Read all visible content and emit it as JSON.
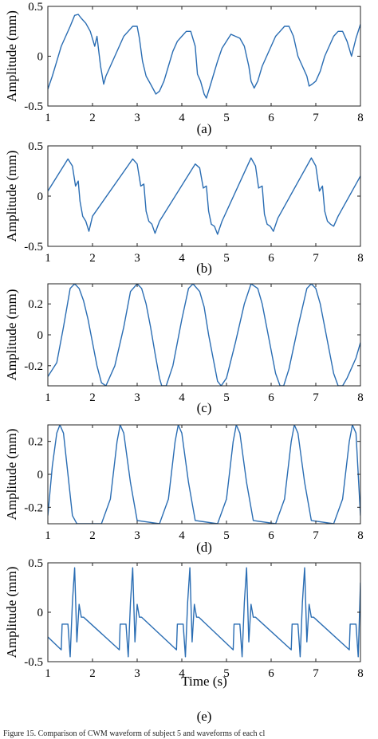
{
  "chart_data": [
    {
      "type": "line",
      "panel_label": "(a)",
      "ylabel": "Amplitude (mm)",
      "xlabel": "",
      "xlim": [
        1,
        8
      ],
      "ylim": [
        -0.5,
        0.5
      ],
      "xticks": [
        "1",
        "2",
        "3",
        "4",
        "5",
        "6",
        "7",
        "8"
      ],
      "yticks": [
        "0.5",
        "0",
        "-0.5"
      ],
      "ytick_values": [
        0.5,
        0,
        -0.5
      ],
      "grid": false,
      "series": [
        {
          "x": [
            1.0,
            1.1,
            1.2,
            1.3,
            1.4,
            1.5,
            1.6,
            1.68,
            1.75,
            1.85,
            1.95,
            2.05,
            2.1,
            2.18,
            2.25,
            2.3,
            2.4,
            2.5,
            2.6,
            2.7,
            2.8,
            2.9,
            3.0,
            3.05,
            3.12,
            3.2,
            3.3,
            3.42,
            3.5,
            3.6,
            3.7,
            3.8,
            3.9,
            4.0,
            4.1,
            4.2,
            4.3,
            4.35,
            4.42,
            4.5,
            4.55,
            4.62,
            4.7,
            4.8,
            4.9,
            5.0,
            5.1,
            5.2,
            5.3,
            5.4,
            5.5,
            5.55,
            5.62,
            5.7,
            5.8,
            5.9,
            6.0,
            6.1,
            6.2,
            6.3,
            6.4,
            6.5,
            6.6,
            6.7,
            6.8,
            6.85,
            6.92,
            7.0,
            7.1,
            7.2,
            7.3,
            7.4,
            7.5,
            7.6,
            7.7,
            7.8,
            7.9,
            8.0
          ],
          "y": [
            -0.33,
            -0.2,
            -0.05,
            0.1,
            0.2,
            0.3,
            0.41,
            0.42,
            0.38,
            0.33,
            0.25,
            0.1,
            0.2,
            -0.1,
            -0.28,
            -0.2,
            -0.1,
            0.0,
            0.1,
            0.2,
            0.25,
            0.3,
            0.3,
            0.18,
            -0.05,
            -0.2,
            -0.28,
            -0.38,
            -0.35,
            -0.25,
            -0.1,
            0.05,
            0.15,
            0.2,
            0.25,
            0.25,
            0.1,
            -0.18,
            -0.25,
            -0.38,
            -0.42,
            -0.32,
            -0.2,
            -0.05,
            0.08,
            0.15,
            0.22,
            0.2,
            0.18,
            0.1,
            -0.1,
            -0.25,
            -0.32,
            -0.25,
            -0.1,
            0.0,
            0.1,
            0.2,
            0.25,
            0.3,
            0.3,
            0.2,
            0.0,
            -0.1,
            -0.2,
            -0.3,
            -0.28,
            -0.25,
            -0.15,
            0.0,
            0.1,
            0.2,
            0.25,
            0.25,
            0.15,
            0.0,
            0.18,
            0.32
          ]
        }
      ]
    },
    {
      "type": "line",
      "panel_label": "(b)",
      "ylabel": "Amplitude (mm)",
      "xlabel": "",
      "xlim": [
        1,
        8
      ],
      "ylim": [
        -0.5,
        0.5
      ],
      "xticks": [
        "1",
        "2",
        "3",
        "4",
        "5",
        "6",
        "7",
        "8"
      ],
      "yticks": [
        "0.5",
        "0",
        "-0.5"
      ],
      "ytick_values": [
        0.5,
        0,
        -0.5
      ],
      "grid": false,
      "series": [
        {
          "x": [
            1.0,
            1.45,
            1.55,
            1.62,
            1.68,
            1.72,
            1.78,
            1.85,
            1.92,
            2.0,
            2.9,
            3.0,
            3.08,
            3.15,
            3.2,
            3.26,
            3.33,
            3.4,
            3.5,
            4.3,
            4.4,
            4.48,
            4.55,
            4.6,
            4.66,
            4.73,
            4.8,
            4.9,
            5.55,
            5.65,
            5.72,
            5.8,
            5.85,
            5.91,
            5.98,
            6.05,
            6.15,
            6.9,
            7.0,
            7.08,
            7.15,
            7.2,
            7.26,
            7.33,
            7.4,
            7.5,
            8.0
          ],
          "y": [
            0.05,
            0.37,
            0.3,
            0.1,
            0.15,
            -0.05,
            -0.2,
            -0.25,
            -0.35,
            -0.2,
            0.37,
            0.32,
            0.1,
            0.12,
            -0.15,
            -0.25,
            -0.28,
            -0.37,
            -0.25,
            0.32,
            0.28,
            0.08,
            0.1,
            -0.15,
            -0.28,
            -0.3,
            -0.38,
            -0.25,
            0.38,
            0.3,
            0.08,
            0.1,
            -0.18,
            -0.28,
            -0.3,
            -0.35,
            -0.22,
            0.38,
            0.3,
            0.05,
            0.1,
            -0.15,
            -0.25,
            -0.28,
            -0.3,
            -0.2,
            0.2
          ]
        }
      ]
    },
    {
      "type": "line",
      "panel_label": "(c)",
      "ylabel": "Amplitude (mm)",
      "xlabel": "",
      "xlim": [
        1,
        8
      ],
      "ylim": [
        -0.33,
        0.33
      ],
      "xticks": [
        "1",
        "2",
        "3",
        "4",
        "5",
        "6",
        "7",
        "8"
      ],
      "yticks": [
        "0.2",
        "0",
        "-0.2"
      ],
      "ytick_values": [
        0.2,
        0,
        -0.2
      ],
      "grid": false,
      "series": [
        {
          "x": [
            1.0,
            1.2,
            1.35,
            1.5,
            1.6,
            1.7,
            1.8,
            1.9,
            2.0,
            2.1,
            2.2,
            2.3,
            2.5,
            2.7,
            2.85,
            3.0,
            3.1,
            3.2,
            3.3,
            3.4,
            3.5,
            3.55,
            3.65,
            3.8,
            4.0,
            4.15,
            4.25,
            4.4,
            4.5,
            4.6,
            4.7,
            4.8,
            4.88,
            5.0,
            5.2,
            5.4,
            5.55,
            5.7,
            5.8,
            5.9,
            6.0,
            6.1,
            6.2,
            6.28,
            6.4,
            6.6,
            6.8,
            6.9,
            7.0,
            7.1,
            7.2,
            7.3,
            7.4,
            7.5,
            7.6,
            7.7,
            7.9,
            8.0
          ],
          "y": [
            -0.27,
            -0.18,
            0.05,
            0.3,
            0.33,
            0.3,
            0.22,
            0.1,
            -0.05,
            -0.2,
            -0.31,
            -0.33,
            -0.2,
            0.05,
            0.28,
            0.33,
            0.3,
            0.2,
            0.05,
            -0.12,
            -0.28,
            -0.33,
            -0.33,
            -0.2,
            0.1,
            0.3,
            0.33,
            0.28,
            0.18,
            0.0,
            -0.15,
            -0.3,
            -0.33,
            -0.28,
            -0.05,
            0.2,
            0.33,
            0.3,
            0.2,
            0.05,
            -0.1,
            -0.25,
            -0.33,
            -0.33,
            -0.22,
            0.05,
            0.3,
            0.33,
            0.3,
            0.2,
            0.05,
            -0.1,
            -0.25,
            -0.33,
            -0.33,
            -0.28,
            -0.15,
            -0.05
          ]
        }
      ]
    },
    {
      "type": "line",
      "panel_label": "(d)",
      "ylabel": "Amplitude (mm)",
      "xlabel": "",
      "xlim": [
        1,
        8
      ],
      "ylim": [
        -0.3,
        0.3
      ],
      "xticks": [
        "1",
        "2",
        "3",
        "4",
        "5",
        "6",
        "7",
        "8"
      ],
      "yticks": [
        "0.2",
        "0",
        "-0.2"
      ],
      "ytick_values": [
        0.2,
        0,
        -0.2
      ],
      "grid": false,
      "series": [
        {
          "x": [
            1.0,
            1.1,
            1.2,
            1.27,
            1.35,
            1.45,
            1.55,
            1.65,
            2.2,
            2.4,
            2.55,
            2.62,
            2.7,
            2.85,
            3.0,
            3.5,
            3.7,
            3.85,
            3.92,
            4.0,
            4.15,
            4.3,
            4.8,
            5.0,
            5.15,
            5.22,
            5.3,
            5.45,
            5.6,
            6.1,
            6.3,
            6.45,
            6.52,
            6.6,
            6.75,
            6.9,
            7.4,
            7.6,
            7.75,
            7.82,
            7.9,
            8.0
          ],
          "y": [
            -0.25,
            0.05,
            0.25,
            0.3,
            0.25,
            0.0,
            -0.25,
            -0.3,
            -0.3,
            -0.15,
            0.2,
            0.3,
            0.25,
            -0.05,
            -0.28,
            -0.3,
            -0.15,
            0.2,
            0.3,
            0.25,
            -0.05,
            -0.28,
            -0.3,
            -0.15,
            0.2,
            0.3,
            0.25,
            -0.05,
            -0.28,
            -0.3,
            -0.15,
            0.2,
            0.3,
            0.25,
            -0.05,
            -0.28,
            -0.3,
            -0.15,
            0.2,
            0.3,
            0.25,
            -0.25
          ]
        }
      ]
    },
    {
      "type": "line",
      "panel_label": "(e)",
      "ylabel": "Amplitude (mm)",
      "xlabel": "Time (s)",
      "xlim": [
        1,
        8
      ],
      "ylim": [
        -0.5,
        0.5
      ],
      "xticks": [
        "1",
        "2",
        "3",
        "4",
        "5",
        "6",
        "7",
        "8"
      ],
      "yticks": [
        "0.5",
        "0",
        "-0.5"
      ],
      "ytick_values": [
        0.5,
        0,
        -0.5
      ],
      "grid": false,
      "series": [
        {
          "x": [
            1.0,
            1.3,
            1.32,
            1.45,
            1.5,
            1.55,
            1.6,
            1.65,
            1.7,
            1.75,
            1.8,
            2.6,
            2.62,
            2.75,
            2.8,
            2.85,
            2.9,
            2.95,
            3.0,
            3.05,
            3.1,
            3.88,
            3.9,
            4.03,
            4.08,
            4.13,
            4.18,
            4.23,
            4.28,
            4.33,
            4.38,
            5.15,
            5.17,
            5.3,
            5.35,
            5.4,
            5.45,
            5.5,
            5.55,
            5.6,
            5.65,
            6.45,
            6.47,
            6.6,
            6.65,
            6.7,
            6.75,
            6.8,
            6.85,
            6.9,
            6.95,
            7.75,
            7.77,
            7.9,
            7.95,
            8.0
          ],
          "y": [
            -0.25,
            -0.38,
            -0.12,
            -0.12,
            -0.45,
            0.1,
            0.45,
            -0.3,
            0.08,
            -0.05,
            -0.05,
            -0.38,
            -0.12,
            -0.12,
            -0.45,
            0.1,
            0.45,
            -0.3,
            0.08,
            -0.05,
            -0.05,
            -0.38,
            -0.12,
            -0.12,
            -0.45,
            0.1,
            0.45,
            -0.3,
            0.08,
            -0.05,
            -0.05,
            -0.38,
            -0.12,
            -0.12,
            -0.45,
            0.1,
            0.45,
            -0.3,
            0.08,
            -0.05,
            -0.05,
            -0.38,
            -0.12,
            -0.12,
            -0.45,
            0.1,
            0.45,
            -0.3,
            0.08,
            -0.05,
            -0.05,
            -0.38,
            -0.12,
            -0.12,
            -0.45,
            0.3
          ]
        }
      ]
    }
  ],
  "caption": "Figure 15. Comparison of CWM waveform of subject 5 and waveforms of each cl"
}
